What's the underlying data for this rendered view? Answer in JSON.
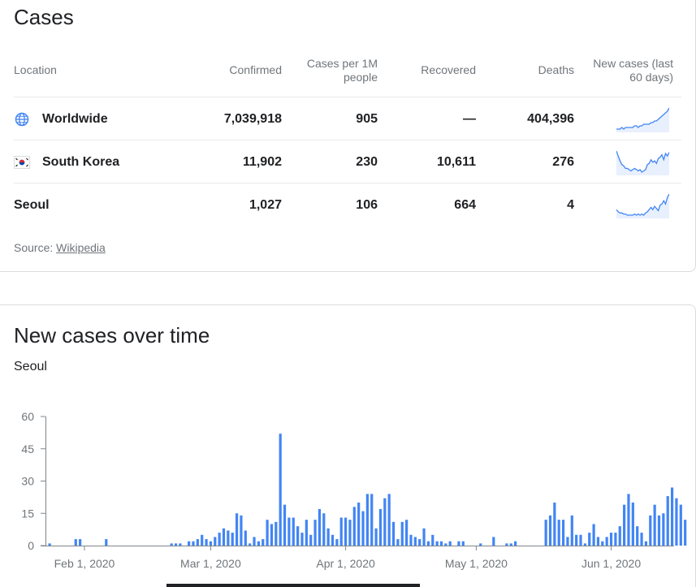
{
  "cases": {
    "title": "Cases",
    "headers": {
      "location": "Location",
      "confirmed": "Confirmed",
      "per_million": "Cases per 1M people",
      "recovered": "Recovered",
      "deaths": "Deaths",
      "new_cases": "New cases (last 60 days)"
    },
    "rows": [
      {
        "location": "Worldwide",
        "icon": "globe-icon",
        "confirmed": "7,039,918",
        "per_million": "905",
        "recovered": "—",
        "deaths": "404,396",
        "trend": [
          5,
          5,
          5,
          6,
          5,
          6,
          6,
          6,
          6,
          6,
          7,
          7,
          6,
          7,
          7,
          8,
          8,
          8,
          8,
          9,
          9,
          10,
          10,
          11,
          12,
          13,
          14,
          15,
          16,
          18
        ]
      },
      {
        "location": "South Korea",
        "icon": "south-korea-flag-icon",
        "confirmed": "11,902",
        "per_million": "230",
        "recovered": "10,611",
        "deaths": "276",
        "trend": [
          20,
          16,
          12,
          9,
          8,
          6,
          6,
          5,
          4,
          5,
          6,
          5,
          4,
          5,
          3,
          4,
          5,
          9,
          10,
          13,
          11,
          12,
          10,
          14,
          15,
          17,
          13,
          18,
          16,
          19
        ]
      },
      {
        "location": "Seoul",
        "icon": "",
        "confirmed": "1,027",
        "per_million": "106",
        "recovered": "664",
        "deaths": "4",
        "trend": [
          10,
          8,
          7,
          7,
          6,
          6,
          5,
          5,
          5,
          5,
          6,
          5,
          6,
          5,
          6,
          5,
          7,
          8,
          10,
          12,
          10,
          13,
          11,
          9,
          14,
          15,
          18,
          15,
          21,
          24
        ]
      }
    ],
    "source_label": "Source:",
    "source_link": "Wikipedia"
  },
  "chart": {
    "title": "New cases over time",
    "subtitle": "Seoul",
    "accent": "#4285f4"
  },
  "chart_data": {
    "type": "bar",
    "x_start": "2020-01-24",
    "x_ticks": [
      "Feb 1, 2020",
      "Mar 1, 2020",
      "Apr 1, 2020",
      "May 1, 2020",
      "Jun 1, 2020"
    ],
    "y_ticks": [
      0,
      15,
      30,
      45,
      60
    ],
    "ylim": [
      0,
      60
    ],
    "series": [
      {
        "values": [
          1,
          0,
          0,
          0,
          0,
          0,
          3,
          3,
          0,
          0,
          0,
          0,
          0,
          3,
          0,
          0,
          0,
          0,
          0,
          0,
          0,
          0,
          0,
          0,
          0,
          0,
          0,
          0,
          1,
          1,
          1,
          0,
          2,
          2,
          3,
          5,
          3,
          2,
          4,
          6,
          8,
          7,
          6,
          15,
          14,
          7,
          1,
          4,
          2,
          3,
          12,
          10,
          11,
          52,
          19,
          13,
          13,
          9,
          6,
          12,
          5,
          12,
          17,
          15,
          8,
          5,
          3,
          13,
          13,
          12,
          18,
          20,
          16,
          24,
          24,
          8,
          17,
          22,
          24,
          11,
          3,
          11,
          12,
          5,
          4,
          3,
          8,
          2,
          5,
          2,
          2,
          1,
          2,
          0,
          2,
          2,
          0,
          0,
          0,
          1,
          0,
          0,
          4,
          0,
          0,
          1,
          1,
          2,
          0,
          0,
          0,
          0,
          0,
          0,
          12,
          14,
          20,
          12,
          12,
          4,
          14,
          5,
          5,
          1,
          6,
          10,
          4,
          2,
          4,
          6,
          6,
          9,
          19,
          24,
          20,
          9,
          6,
          2,
          14,
          19,
          14,
          15,
          23,
          27,
          22,
          19,
          12
        ],
        "color": "#4285f4"
      }
    ],
    "grid": false
  }
}
